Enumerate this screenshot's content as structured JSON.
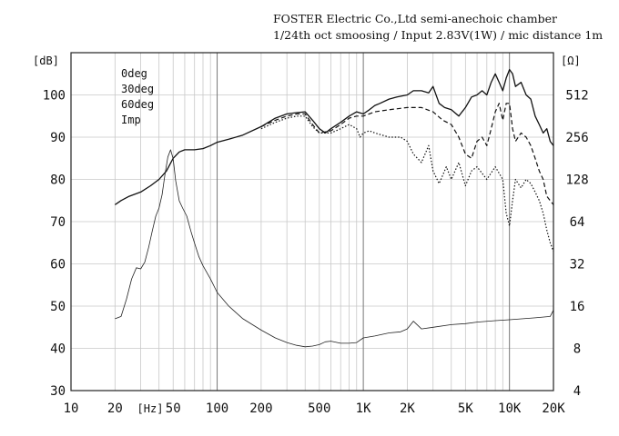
{
  "header": {
    "line1": "FOSTER Electric Co.,Ltd  semi-anechoic chamber",
    "line2": "1/24th oct smoosing / Input 2.83V(1W) / mic distance 1m"
  },
  "axes": {
    "y_left_unit": "[dB]",
    "y_right_unit": "[Ω]",
    "x_unit": "[Hz]"
  },
  "legend": {
    "items": [
      "0deg",
      "30deg",
      "60deg",
      "Imp"
    ]
  },
  "chart_data": {
    "type": "line",
    "x_scale": "log",
    "xlim": [
      10,
      20000
    ],
    "ylim": [
      30,
      110
    ],
    "y2_scale": "log",
    "y2lim": [
      4,
      1024
    ],
    "grid": true,
    "x_ticks": [
      {
        "v": 10,
        "label": "10"
      },
      {
        "v": 20,
        "label": "20"
      },
      {
        "v": 50,
        "label": "50"
      },
      {
        "v": 100,
        "label": "100"
      },
      {
        "v": 200,
        "label": "200"
      },
      {
        "v": 500,
        "label": "500"
      },
      {
        "v": 1000,
        "label": "1K"
      },
      {
        "v": 2000,
        "label": "2K"
      },
      {
        "v": 5000,
        "label": "5K"
      },
      {
        "v": 10000,
        "label": "10K"
      },
      {
        "v": 20000,
        "label": "20K"
      }
    ],
    "y_ticks": [
      30,
      40,
      50,
      60,
      70,
      80,
      90,
      100
    ],
    "y2_ticks": [
      4,
      8,
      16,
      32,
      64,
      128,
      256,
      512
    ],
    "series": [
      {
        "name": "0deg",
        "style": "solid",
        "axis": "left",
        "points": [
          [
            20,
            74
          ],
          [
            22,
            75
          ],
          [
            25,
            76
          ],
          [
            30,
            77
          ],
          [
            35,
            78.5
          ],
          [
            40,
            80
          ],
          [
            45,
            82
          ],
          [
            50,
            85
          ],
          [
            55,
            86.5
          ],
          [
            60,
            87
          ],
          [
            70,
            87
          ],
          [
            80,
            87.3
          ],
          [
            90,
            88
          ],
          [
            100,
            88.8
          ],
          [
            120,
            89.5
          ],
          [
            150,
            90.5
          ],
          [
            200,
            92.5
          ],
          [
            250,
            94.5
          ],
          [
            300,
            95.5
          ],
          [
            350,
            95.8
          ],
          [
            400,
            96
          ],
          [
            450,
            94
          ],
          [
            500,
            92
          ],
          [
            550,
            91
          ],
          [
            600,
            92
          ],
          [
            700,
            93.5
          ],
          [
            800,
            95
          ],
          [
            900,
            96
          ],
          [
            1000,
            95.5
          ],
          [
            1100,
            96.5
          ],
          [
            1200,
            97.5
          ],
          [
            1300,
            98
          ],
          [
            1500,
            99
          ],
          [
            1700,
            99.5
          ],
          [
            2000,
            100
          ],
          [
            2200,
            101
          ],
          [
            2500,
            101
          ],
          [
            2800,
            100.5
          ],
          [
            3000,
            102
          ],
          [
            3300,
            98
          ],
          [
            3600,
            97
          ],
          [
            4000,
            96.5
          ],
          [
            4500,
            95
          ],
          [
            5000,
            97
          ],
          [
            5500,
            99.5
          ],
          [
            6000,
            100
          ],
          [
            6500,
            101
          ],
          [
            7000,
            100
          ],
          [
            7500,
            103
          ],
          [
            8000,
            105
          ],
          [
            8500,
            103
          ],
          [
            9000,
            101
          ],
          [
            9500,
            104
          ],
          [
            10000,
            106
          ],
          [
            10500,
            105
          ],
          [
            11000,
            102
          ],
          [
            12000,
            103
          ],
          [
            13000,
            100
          ],
          [
            14000,
            99
          ],
          [
            15000,
            95
          ],
          [
            16000,
            93
          ],
          [
            17000,
            91
          ],
          [
            18000,
            92
          ],
          [
            19000,
            89
          ],
          [
            20000,
            88
          ]
        ]
      },
      {
        "name": "30deg",
        "style": "dashed",
        "axis": "left",
        "points": [
          [
            200,
            92.5
          ],
          [
            250,
            94
          ],
          [
            300,
            95
          ],
          [
            350,
            95.5
          ],
          [
            400,
            95.5
          ],
          [
            450,
            93
          ],
          [
            500,
            91
          ],
          [
            600,
            91.5
          ],
          [
            700,
            93
          ],
          [
            800,
            94.5
          ],
          [
            900,
            95
          ],
          [
            1000,
            95
          ],
          [
            1200,
            96
          ],
          [
            1500,
            96.5
          ],
          [
            2000,
            97
          ],
          [
            2500,
            97
          ],
          [
            3000,
            96
          ],
          [
            3500,
            94
          ],
          [
            4000,
            93
          ],
          [
            4500,
            90
          ],
          [
            5000,
            86
          ],
          [
            5500,
            85
          ],
          [
            6000,
            89
          ],
          [
            6500,
            90
          ],
          [
            7000,
            88
          ],
          [
            7500,
            92
          ],
          [
            8000,
            96
          ],
          [
            8500,
            98
          ],
          [
            9000,
            94
          ],
          [
            9500,
            98
          ],
          [
            10000,
            98
          ],
          [
            10500,
            92
          ],
          [
            11000,
            89
          ],
          [
            12000,
            91
          ],
          [
            13000,
            90
          ],
          [
            14000,
            88
          ],
          [
            15000,
            85
          ],
          [
            16000,
            82
          ],
          [
            17000,
            80
          ],
          [
            18000,
            76
          ],
          [
            19000,
            75
          ],
          [
            20000,
            74
          ]
        ]
      },
      {
        "name": "60deg",
        "style": "dotted",
        "axis": "left",
        "points": [
          [
            200,
            92
          ],
          [
            250,
            93.5
          ],
          [
            300,
            94.5
          ],
          [
            350,
            95
          ],
          [
            400,
            95
          ],
          [
            450,
            92.5
          ],
          [
            500,
            91
          ],
          [
            600,
            91
          ],
          [
            700,
            92
          ],
          [
            800,
            93
          ],
          [
            900,
            92
          ],
          [
            950,
            90
          ],
          [
            1000,
            91
          ],
          [
            1100,
            91.5
          ],
          [
            1200,
            91
          ],
          [
            1500,
            90
          ],
          [
            1800,
            90
          ],
          [
            2000,
            89
          ],
          [
            2200,
            86
          ],
          [
            2500,
            84
          ],
          [
            2800,
            88
          ],
          [
            3000,
            82
          ],
          [
            3300,
            79
          ],
          [
            3700,
            83
          ],
          [
            4000,
            80
          ],
          [
            4500,
            84
          ],
          [
            5000,
            78.5
          ],
          [
            5500,
            82
          ],
          [
            6000,
            83
          ],
          [
            7000,
            80
          ],
          [
            8000,
            83
          ],
          [
            9000,
            80
          ],
          [
            9500,
            72
          ],
          [
            10000,
            69
          ],
          [
            10500,
            75
          ],
          [
            11000,
            80
          ],
          [
            12000,
            78
          ],
          [
            13000,
            80
          ],
          [
            14000,
            79
          ],
          [
            15000,
            77
          ],
          [
            16000,
            75
          ],
          [
            17000,
            72
          ],
          [
            18000,
            68
          ],
          [
            19000,
            65
          ],
          [
            20000,
            63
          ]
        ]
      },
      {
        "name": "Imp",
        "style": "thin",
        "axis": "right",
        "points": [
          [
            20,
            13
          ],
          [
            22,
            13.5
          ],
          [
            24,
            18
          ],
          [
            26,
            25
          ],
          [
            28,
            30
          ],
          [
            30,
            29.5
          ],
          [
            32,
            33
          ],
          [
            34,
            42
          ],
          [
            36,
            55
          ],
          [
            38,
            70
          ],
          [
            40,
            80
          ],
          [
            42,
            100
          ],
          [
            44,
            140
          ],
          [
            46,
            185
          ],
          [
            48,
            208
          ],
          [
            50,
            180
          ],
          [
            52,
            125
          ],
          [
            55,
            90
          ],
          [
            58,
            80
          ],
          [
            62,
            70
          ],
          [
            66,
            55
          ],
          [
            70,
            45
          ],
          [
            75,
            36
          ],
          [
            80,
            31
          ],
          [
            90,
            25
          ],
          [
            100,
            20
          ],
          [
            120,
            16
          ],
          [
            150,
            13
          ],
          [
            200,
            10.8
          ],
          [
            250,
            9.5
          ],
          [
            300,
            8.8
          ],
          [
            350,
            8.4
          ],
          [
            400,
            8.2
          ],
          [
            450,
            8.3
          ],
          [
            500,
            8.5
          ],
          [
            550,
            8.9
          ],
          [
            600,
            9
          ],
          [
            700,
            8.7
          ],
          [
            800,
            8.7
          ],
          [
            900,
            8.8
          ],
          [
            1000,
            9.5
          ],
          [
            1200,
            9.8
          ],
          [
            1500,
            10.3
          ],
          [
            1800,
            10.5
          ],
          [
            2000,
            11
          ],
          [
            2200,
            12.5
          ],
          [
            2500,
            11
          ],
          [
            3000,
            11.3
          ],
          [
            4000,
            11.8
          ],
          [
            5000,
            12
          ],
          [
            6000,
            12.3
          ],
          [
            8000,
            12.6
          ],
          [
            10000,
            12.8
          ],
          [
            15000,
            13.2
          ],
          [
            19000,
            13.5
          ],
          [
            20000,
            15
          ]
        ]
      }
    ]
  }
}
